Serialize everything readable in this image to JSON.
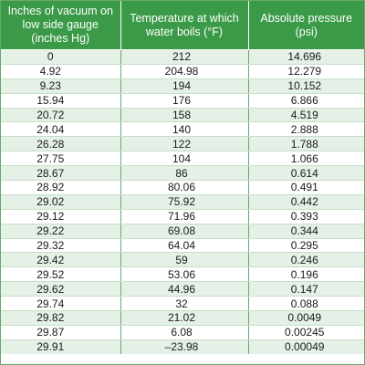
{
  "table": {
    "headers": [
      "Inches of vacuum on low side gauge (inches Hg)",
      "Temperature at which water boils (°F)",
      "Absolute pressure (psi)"
    ],
    "rows": [
      [
        "0",
        "212",
        "14.696"
      ],
      [
        "4.92",
        "204.98",
        "12.279"
      ],
      [
        "9.23",
        "194",
        "10.152"
      ],
      [
        "15.94",
        "176",
        "6.866"
      ],
      [
        "20.72",
        "158",
        "4.519"
      ],
      [
        "24.04",
        "140",
        "2.888"
      ],
      [
        "26.28",
        "122",
        "1.788"
      ],
      [
        "27.75",
        "104",
        "1.066"
      ],
      [
        "28.67",
        "86",
        "0.614"
      ],
      [
        "28.92",
        "80.06",
        "0.491"
      ],
      [
        "29.02",
        "75.92",
        "0.442"
      ],
      [
        "29.12",
        "71.96",
        "0.393"
      ],
      [
        "29.22",
        "69.08",
        "0.344"
      ],
      [
        "29.32",
        "64.04",
        "0.295"
      ],
      [
        "29.42",
        "59",
        "0.246"
      ],
      [
        "29.52",
        "53.06",
        "0.196"
      ],
      [
        "29.62",
        "44.96",
        "0.147"
      ],
      [
        "29.74",
        "32",
        "0.088"
      ],
      [
        "29.82",
        "21.02",
        "0.0049"
      ],
      [
        "29.87",
        "6.08",
        "0.00245"
      ],
      [
        "29.91",
        "–23.98",
        "0.00049"
      ]
    ]
  },
  "colors": {
    "header_bg": "#3a9a47",
    "row_alt_bg": "#e5f1e6",
    "border": "#6aa86f"
  }
}
